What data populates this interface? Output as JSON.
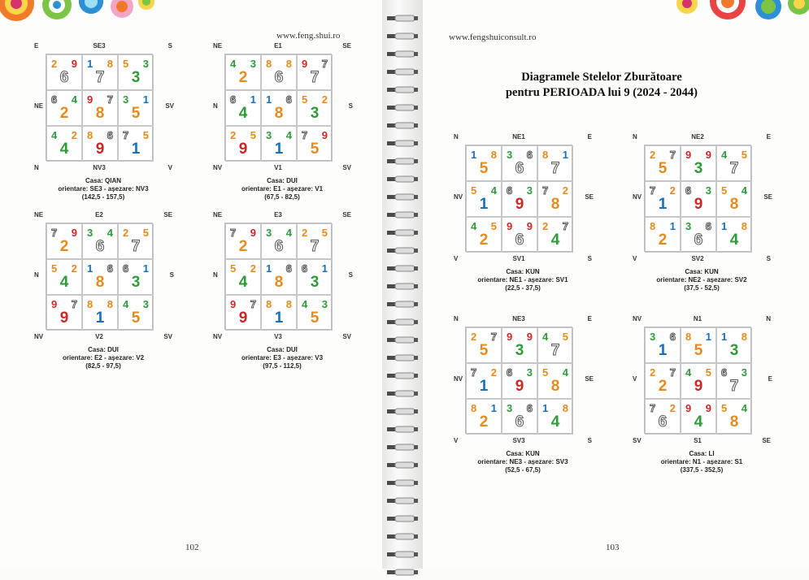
{
  "colors": {
    "1": "#1a70b8",
    "2": "#e58a1f",
    "3": "#2e9a3a",
    "4": "#2e9a3a",
    "5": "#e58a1f",
    "6": "outline",
    "7": "outline",
    "8": "#e58a1f",
    "9": "#d02626"
  },
  "left_page": {
    "website": "www.feng.shui.ro",
    "page_number": "102"
  },
  "right_page": {
    "website": "www.fengshuiconsult.ro",
    "title_line1": "Diagramele Stelelor Zburătoare",
    "title_line2": "pentru PERIOADA lui 9 (2024 - 2044)",
    "page_number": "103"
  },
  "charts": [
    {
      "labels": {
        "tl": "E",
        "tc": "SE3",
        "tr": "S",
        "ml": "NE",
        "mr": "SV",
        "bl": "N",
        "bc": "NV3",
        "br": "V"
      },
      "cells": [
        [
          "2",
          "9",
          "6"
        ],
        [
          "1",
          "8",
          "7"
        ],
        [
          "5",
          "3",
          "3"
        ],
        [
          "6",
          "4",
          "2"
        ],
        [
          "9",
          "7",
          "8"
        ],
        [
          "3",
          "1",
          "5"
        ],
        [
          "4",
          "2",
          "4"
        ],
        [
          "8",
          "6",
          "9"
        ],
        [
          "7",
          "5",
          "1"
        ]
      ],
      "caption": {
        "house": "Casa: QIAN",
        "orient": "orientare: SE3 - așezare: NV3",
        "range": "(142,5 - 157,5)"
      }
    },
    {
      "labels": {
        "tl": "NE",
        "tc": "E1",
        "tr": "SE",
        "ml": "N",
        "mr": "S",
        "bl": "NV",
        "bc": "V1",
        "br": "SV"
      },
      "cells": [
        [
          "4",
          "3",
          "2"
        ],
        [
          "8",
          "8",
          "6"
        ],
        [
          "9",
          "7",
          "7"
        ],
        [
          "6",
          "1",
          "4"
        ],
        [
          "1",
          "6",
          "8"
        ],
        [
          "5",
          "2",
          "3"
        ],
        [
          "2",
          "5",
          "9"
        ],
        [
          "3",
          "4",
          "1"
        ],
        [
          "7",
          "9",
          "5"
        ]
      ],
      "caption": {
        "house": "Casa: DUI",
        "orient": "orientare: E1 - așezare: V1",
        "range": "(67,5 - 82,5)"
      }
    },
    {
      "labels": {
        "tl": "NE",
        "tc": "E2",
        "tr": "SE",
        "ml": "N",
        "mr": "S",
        "bl": "NV",
        "bc": "V2",
        "br": "SV"
      },
      "cells": [
        [
          "7",
          "9",
          "2"
        ],
        [
          "3",
          "4",
          "6"
        ],
        [
          "2",
          "5",
          "7"
        ],
        [
          "5",
          "2",
          "4"
        ],
        [
          "1",
          "6",
          "8"
        ],
        [
          "6",
          "1",
          "3"
        ],
        [
          "9",
          "7",
          "9"
        ],
        [
          "8",
          "8",
          "1"
        ],
        [
          "4",
          "3",
          "5"
        ]
      ],
      "caption": {
        "house": "Casa: DUI",
        "orient": "orientare: E2 - așezare: V2",
        "range": "(82,5 - 97,5)"
      }
    },
    {
      "labels": {
        "tl": "NE",
        "tc": "E3",
        "tr": "SE",
        "ml": "N",
        "mr": "S",
        "bl": "NV",
        "bc": "V3",
        "br": "SV"
      },
      "cells": [
        [
          "7",
          "9",
          "2"
        ],
        [
          "3",
          "4",
          "6"
        ],
        [
          "2",
          "5",
          "7"
        ],
        [
          "5",
          "2",
          "4"
        ],
        [
          "1",
          "6",
          "8"
        ],
        [
          "6",
          "1",
          "3"
        ],
        [
          "9",
          "7",
          "9"
        ],
        [
          "8",
          "8",
          "1"
        ],
        [
          "4",
          "3",
          "5"
        ]
      ],
      "caption": {
        "house": "Casa: DUI",
        "orient": "orientare: E3 - așezare: V3",
        "range": "(97,5 - 112,5)"
      }
    },
    {
      "labels": {
        "tl": "N",
        "tc": "NE1",
        "tr": "E",
        "ml": "NV",
        "mr": "SE",
        "bl": "V",
        "bc": "SV1",
        "br": "S"
      },
      "cells": [
        [
          "1",
          "8",
          "5"
        ],
        [
          "3",
          "6",
          "6"
        ],
        [
          "8",
          "1",
          "7"
        ],
        [
          "5",
          "4",
          "1"
        ],
        [
          "6",
          "3",
          "9"
        ],
        [
          "7",
          "2",
          "8"
        ],
        [
          "4",
          "5",
          "2"
        ],
        [
          "9",
          "9",
          "6"
        ],
        [
          "2",
          "7",
          "4"
        ]
      ],
      "caption": {
        "house": "Casa: KUN",
        "orient": "orientare: NE1 - așezare: SV1",
        "range": "(22,5 - 37,5)"
      }
    },
    {
      "labels": {
        "tl": "N",
        "tc": "NE2",
        "tr": "E",
        "ml": "NV",
        "mr": "SE",
        "bl": "V",
        "bc": "SV2",
        "br": "S"
      },
      "cells": [
        [
          "2",
          "7",
          "5"
        ],
        [
          "9",
          "9",
          "3"
        ],
        [
          "4",
          "5",
          "7"
        ],
        [
          "7",
          "2",
          "1"
        ],
        [
          "6",
          "3",
          "9"
        ],
        [
          "5",
          "4",
          "8"
        ],
        [
          "8",
          "1",
          "2"
        ],
        [
          "3",
          "6",
          "6"
        ],
        [
          "1",
          "8",
          "4"
        ]
      ],
      "caption": {
        "house": "Casa: KUN",
        "orient": "orientare: NE2 - așezare: SV2",
        "range": "(37,5 - 52,5)"
      }
    },
    {
      "labels": {
        "tl": "N",
        "tc": "NE3",
        "tr": "E",
        "ml": "NV",
        "mr": "SE",
        "bl": "V",
        "bc": "SV3",
        "br": "S"
      },
      "cells": [
        [
          "2",
          "7",
          "5"
        ],
        [
          "9",
          "9",
          "3"
        ],
        [
          "4",
          "5",
          "7"
        ],
        [
          "7",
          "2",
          "1"
        ],
        [
          "6",
          "3",
          "9"
        ],
        [
          "5",
          "4",
          "8"
        ],
        [
          "8",
          "1",
          "2"
        ],
        [
          "3",
          "6",
          "6"
        ],
        [
          "1",
          "8",
          "4"
        ]
      ],
      "caption": {
        "house": "Casa: KUN",
        "orient": "orientare: NE3 - așezare: SV3",
        "range": "(52,5 - 67,5)"
      }
    },
    {
      "labels": {
        "tl": "NV",
        "tc": "N1",
        "tr": "N",
        "ml": "V",
        "mr": "E",
        "bl": "SV",
        "bc": "S1",
        "br": "SE"
      },
      "cells": [
        [
          "3",
          "6",
          "1"
        ],
        [
          "8",
          "1",
          "5"
        ],
        [
          "1",
          "8",
          "3"
        ],
        [
          "2",
          "7",
          "2"
        ],
        [
          "4",
          "5",
          "9"
        ],
        [
          "6",
          "3",
          "7"
        ],
        [
          "7",
          "2",
          "6"
        ],
        [
          "9",
          "9",
          "4"
        ],
        [
          "5",
          "4",
          "8"
        ]
      ],
      "caption": {
        "house": "Casa: LI",
        "orient": "orientare: N1 - așezare: S1",
        "range": "(337,5 - 352,5)"
      }
    }
  ]
}
